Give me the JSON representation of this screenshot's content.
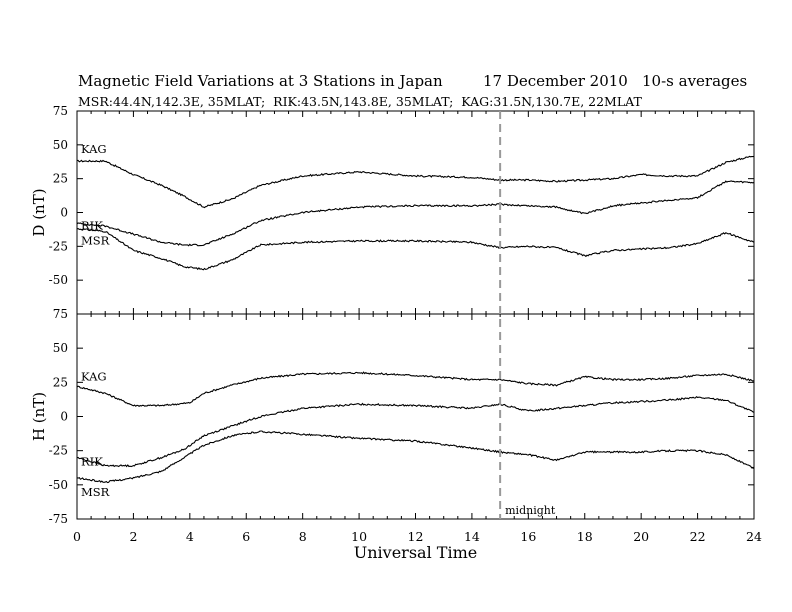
{
  "header": {
    "title": "Magnetic Field Variations at 3 Stations in Japan",
    "date": "17 December 2010",
    "averaging": "10-s averages",
    "stations_line": "MSR:44.4N,142.3E, 35MLAT;  RIK:43.5N,143.8E, 35MLAT;  KAG:31.5N,130.7E, 22MLAT"
  },
  "chart_data": {
    "type": "line",
    "xlabel": "Universal Time",
    "xlim": [
      0,
      24
    ],
    "x_ticks": [
      0,
      2,
      4,
      6,
      8,
      10,
      12,
      14,
      16,
      18,
      20,
      22,
      24
    ],
    "annotation": {
      "x": 15,
      "label": "midnight",
      "style": "dashed"
    },
    "panels": [
      {
        "ylabel": "D (nT)",
        "ylim": [
          -75,
          75
        ],
        "y_ticks": [
          75,
          50,
          25,
          0,
          -25,
          -50,
          -75
        ],
        "series": [
          {
            "name": "KAG",
            "x": [
              0,
              1,
              2,
              3,
              3.8,
              4.5,
              5.5,
              6.5,
              8,
              10,
              12,
              14,
              15,
              16,
              17,
              18,
              19,
              20,
              21,
              22,
              23,
              24
            ],
            "y": [
              38,
              38,
              28,
              20,
              12,
              4,
              10,
              20,
              27,
              30,
              27,
              26,
              24,
              24,
              23,
              24,
              25,
              28,
              27,
              27,
              37,
              42
            ]
          },
          {
            "name": "RIK",
            "x": [
              0,
              1,
              2,
              3,
              3.8,
              4.5,
              5.5,
              6.5,
              8,
              10,
              12,
              14,
              15,
              16,
              17,
              18,
              19,
              20,
              21,
              22,
              23,
              24
            ],
            "y": [
              -8,
              -10,
              -16,
              -22,
              -24,
              -24,
              -16,
              -6,
              0,
              4,
              5,
              5,
              6,
              5,
              4,
              -1,
              5,
              7,
              9,
              11,
              23,
              22
            ]
          },
          {
            "name": "MSR",
            "x": [
              0,
              1,
              2,
              3,
              3.8,
              4.5,
              5.5,
              6.5,
              8,
              10,
              12,
              14,
              15,
              16,
              17,
              18,
              19,
              20,
              21,
              22,
              23,
              24
            ],
            "y": [
              -12,
              -14,
              -28,
              -34,
              -40,
              -42,
              -35,
              -24,
              -22,
              -21,
              -21,
              -22,
              -26,
              -25,
              -26,
              -32,
              -28,
              -27,
              -26,
              -23,
              -15,
              -22
            ]
          }
        ]
      },
      {
        "ylabel": "H (nT)",
        "ylim": [
          -75,
          75
        ],
        "y_ticks": [
          75,
          50,
          25,
          0,
          -25,
          -50,
          -75
        ],
        "series": [
          {
            "name": "KAG",
            "x": [
              0,
              1,
              2,
              3,
              4,
              4.5,
              5.5,
              6.5,
              8,
              10,
              12,
              14,
              15,
              16,
              17,
              18,
              19,
              20,
              21,
              22,
              23,
              24
            ],
            "y": [
              22,
              17,
              8,
              8,
              10,
              17,
              23,
              28,
              31,
              32,
              30,
              27,
              27,
              24,
              23,
              29,
              27,
              27,
              28,
              30,
              31,
              26
            ]
          },
          {
            "name": "RIK",
            "x": [
              0,
              1,
              2,
              3,
              3.8,
              4.5,
              5.5,
              6.5,
              8,
              10,
              12,
              14,
              15,
              16,
              17,
              18,
              19,
              20,
              21,
              22,
              23,
              24
            ],
            "y": [
              -30,
              -36,
              -36,
              -30,
              -24,
              -14,
              -7,
              0,
              6,
              9,
              8,
              6,
              9,
              4,
              6,
              8,
              10,
              11,
              12,
              14,
              12,
              3
            ]
          },
          {
            "name": "MSR",
            "x": [
              0,
              1,
              2,
              3,
              3.8,
              4.5,
              5.5,
              6.5,
              8,
              10,
              12,
              14,
              15,
              16,
              17,
              18,
              19,
              20,
              21,
              22,
              23,
              24
            ],
            "y": [
              -45,
              -48,
              -45,
              -40,
              -30,
              -21,
              -14,
              -11,
              -13,
              -16,
              -18,
              -23,
              -26,
              -28,
              -32,
              -26,
              -26,
              -26,
              -25,
              -25,
              -28,
              -38
            ]
          }
        ]
      }
    ]
  }
}
